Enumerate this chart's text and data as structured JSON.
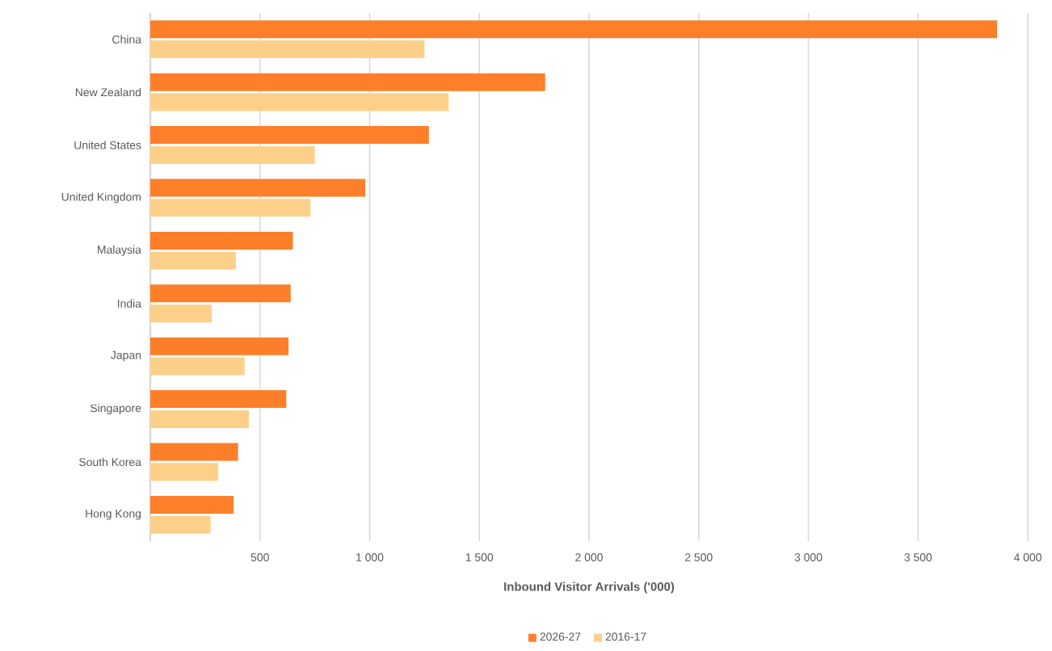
{
  "chart_data": {
    "type": "bar",
    "orientation": "horizontal",
    "xlabel": "Inbound Visitor Arrivals ('000)",
    "categories": [
      "China",
      "New Zealand",
      "United States",
      "United Kingdom",
      "Malaysia",
      "India",
      "Japan",
      "Singapore",
      "South Korea",
      "Hong Kong"
    ],
    "series": [
      {
        "name": "2026-27",
        "color": "#fd7f2a",
        "values": [
          3860,
          1800,
          1270,
          980,
          650,
          640,
          630,
          620,
          400,
          380
        ]
      },
      {
        "name": "2016-17",
        "color": "#fdd08a",
        "values": [
          1250,
          1360,
          750,
          730,
          390,
          280,
          430,
          450,
          310,
          275
        ]
      }
    ],
    "xlim": [
      0,
      4000
    ],
    "xticks": [
      500,
      {
        "value": 1000,
        "label": "1 000"
      },
      {
        "value": 1500,
        "label": "1 500"
      },
      {
        "value": 2000,
        "label": "2 000"
      },
      {
        "value": 2500,
        "label": "2 500"
      },
      {
        "value": 3000,
        "label": "3 000"
      },
      {
        "value": 3500,
        "label": "3 500"
      },
      {
        "value": 4000,
        "label": "4 000"
      }
    ],
    "grid": "x",
    "legend": "bottom"
  }
}
